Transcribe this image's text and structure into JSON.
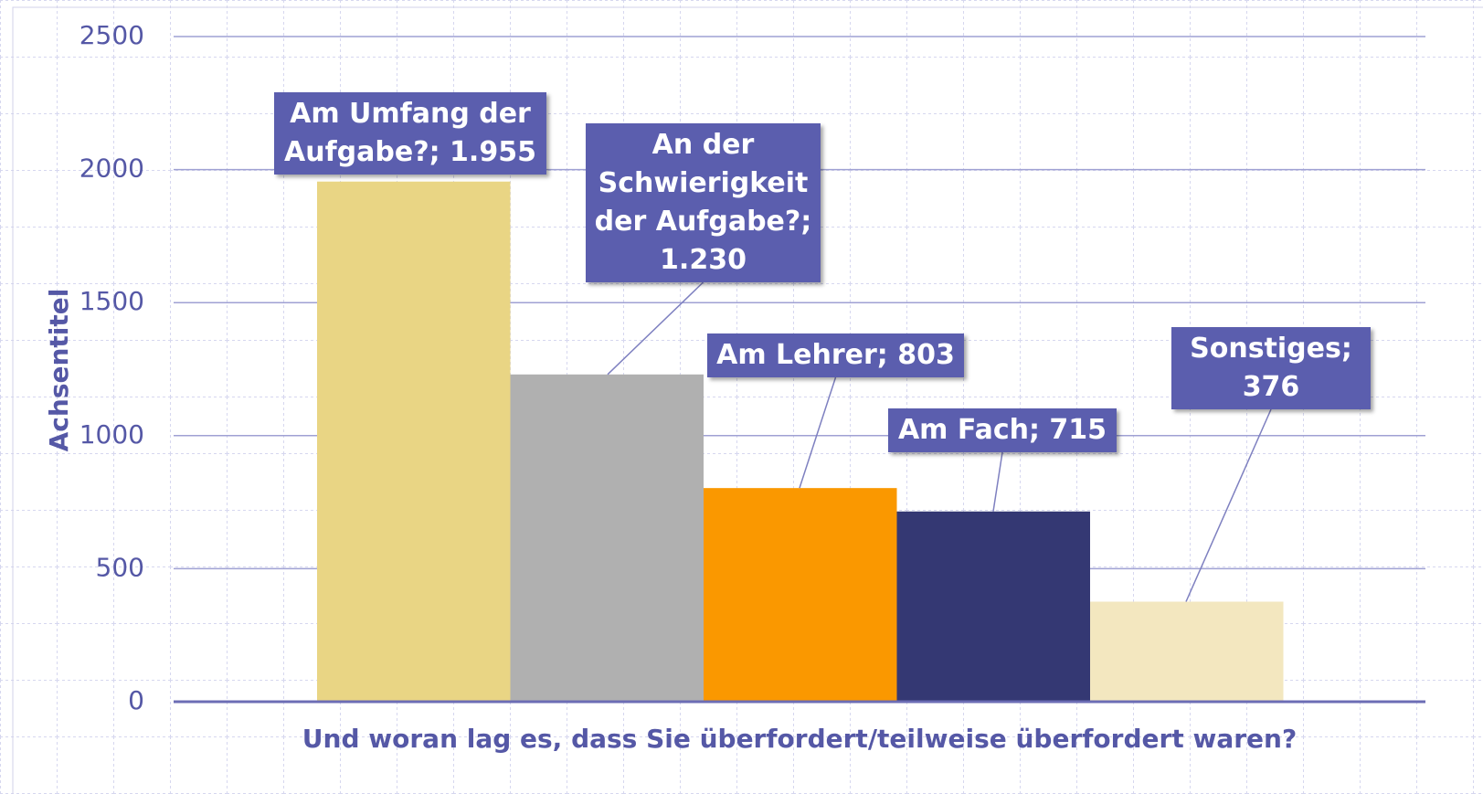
{
  "chart_data": {
    "type": "bar",
    "y_axis_label": "Achsentitel",
    "x_axis_label": "Und woran lag es, dass Sie überfordert/teilweise überfordert waren?",
    "values": [
      1955,
      1230,
      803,
      715,
      376
    ],
    "value_labels": [
      "Am Umfang der Aufgabe?; 1.955",
      "An der Schwierigkeit der Aufgabe?; 1.230",
      "Am Lehrer; 803",
      "Am Fach; 715",
      "Sonstiges; 376"
    ],
    "colors": [
      "#e9d584",
      "#b0b0b0",
      "#fa9800",
      "#343873",
      "#f3e7bf"
    ],
    "ylim": [
      0,
      2500
    ],
    "yticks": [
      0,
      500,
      1000,
      1500,
      2000,
      2500
    ],
    "grid": true
  }
}
